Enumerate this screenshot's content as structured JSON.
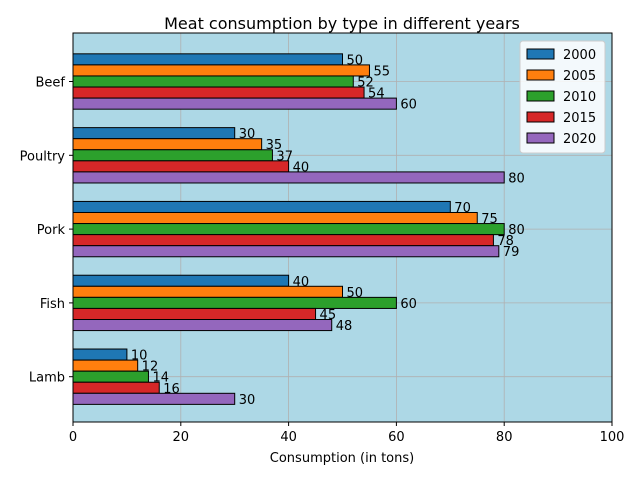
{
  "chart_data": {
    "type": "bar",
    "orientation": "horizontal",
    "title": "Meat consumption by type in different years",
    "xlabel": "Consumption (in tons)",
    "ylabel": "",
    "categories": [
      "Beef",
      "Poultry",
      "Pork",
      "Fish",
      "Lamb"
    ],
    "xlim": [
      0,
      100
    ],
    "xticks": [
      0,
      20,
      40,
      60,
      80,
      100
    ],
    "grid": true,
    "background_color": "#add8e6",
    "legend_position": "top-right",
    "series": [
      {
        "name": "2000",
        "color": "#1f77b4",
        "values": [
          50,
          30,
          70,
          40,
          10
        ]
      },
      {
        "name": "2005",
        "color": "#ff7f0e",
        "values": [
          55,
          35,
          75,
          50,
          12
        ]
      },
      {
        "name": "2010",
        "color": "#2ca02c",
        "values": [
          52,
          37,
          80,
          60,
          14
        ]
      },
      {
        "name": "2015",
        "color": "#d62728",
        "values": [
          54,
          40,
          78,
          45,
          16
        ]
      },
      {
        "name": "2020",
        "color": "#9467bd",
        "values": [
          60,
          80,
          79,
          48,
          30
        ]
      }
    ]
  }
}
